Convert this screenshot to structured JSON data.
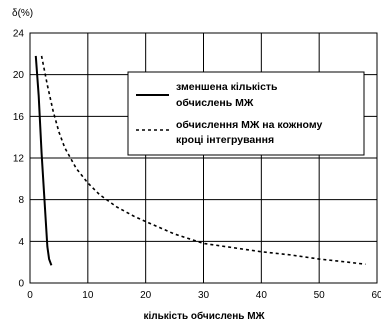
{
  "chart_data": {
    "type": "line",
    "ylabel": "δ(%)",
    "xlabel": "кількість обчислень МЖ",
    "xlim": [
      0,
      60
    ],
    "ylim": [
      0,
      24
    ],
    "x_ticks": [
      0,
      10,
      20,
      30,
      40,
      50,
      60
    ],
    "y_ticks": [
      0,
      4,
      8,
      12,
      16,
      20,
      24
    ],
    "grid": true,
    "legend_position": "right",
    "series": [
      {
        "name_lines": [
          "зменшена кількість",
          "обчислень МЖ"
        ],
        "style": "solid",
        "color": "#000000",
        "x": [
          1.0,
          1.5,
          2.0,
          2.5,
          3.0,
          3.3,
          3.7
        ],
        "y": [
          21.8,
          18.0,
          12.5,
          8.0,
          3.5,
          2.3,
          1.7
        ]
      },
      {
        "name_lines": [
          "обчислення МЖ на кожному",
          "кроці інтегрування"
        ],
        "style": "dashed",
        "color": "#000000",
        "x": [
          2,
          3,
          4,
          5,
          6,
          8,
          10,
          12,
          15,
          18,
          20,
          25,
          30,
          35,
          40,
          45,
          50,
          55,
          58
        ],
        "y": [
          21.8,
          19.0,
          16.5,
          14.5,
          13.0,
          11.0,
          9.6,
          8.5,
          7.3,
          6.4,
          5.9,
          4.7,
          3.8,
          3.4,
          3.0,
          2.7,
          2.3,
          2.0,
          1.8
        ]
      }
    ]
  }
}
